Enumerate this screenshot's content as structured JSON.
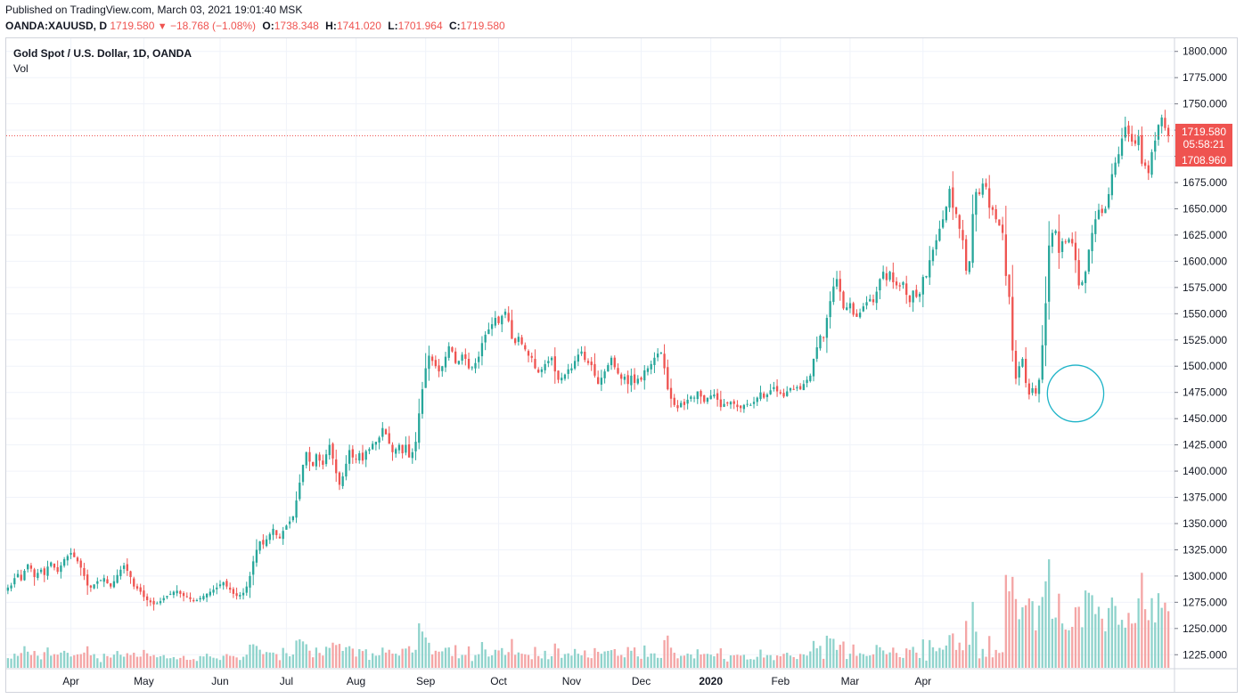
{
  "header": {
    "published": "Published on TradingView.com, March 03, 2021 19:01:40 MSK",
    "symbol": "OANDA:XAUUSD, D",
    "last": "1719.580",
    "change_arrow": "▼",
    "change": "−18.768 (−1.08%)",
    "open_label": "O:",
    "open": "1738.348",
    "high_label": "H:",
    "high": "1741.020",
    "low_label": "L:",
    "low": "1701.964",
    "close_label": "C:",
    "close": "1719.580"
  },
  "legend": {
    "title": "Gold Spot / U.S. Dollar, 1D, OANDA",
    "volume": "Vol"
  },
  "price_scale": {
    "last_price": "1719.580",
    "countdown": "05:58:21",
    "crosshair_price": "1708.960"
  },
  "colors": {
    "up": "#26a69a",
    "down": "#ef5350",
    "up_volume": "#8fd3cc",
    "down_volume": "#f4a5a5",
    "annotation": "#1fb4c8",
    "grid": "#f0f3fa"
  },
  "chart_data": {
    "type": "candlestick",
    "ylim": [
      1212.5,
      1812.5
    ],
    "y_ticks": [
      1800,
      1775,
      1750,
      1725,
      1700,
      1675,
      1650,
      1625,
      1600,
      1575,
      1550,
      1525,
      1500,
      1475,
      1450,
      1425,
      1400,
      1375,
      1350,
      1325,
      1300,
      1275,
      1250,
      1225
    ],
    "y_tick_labels": [
      "1800.000",
      "1775.000",
      "1750.000",
      "1725.000",
      "1700.000",
      "1675.000",
      "1650.000",
      "1625.000",
      "1600.000",
      "1575.000",
      "1550.000",
      "1525.000",
      "1500.000",
      "1475.000",
      "1450.000",
      "1425.000",
      "1400.000",
      "1375.000",
      "1350.000",
      "1325.000",
      "1300.000",
      "1275.000",
      "1250.000",
      "1225.000"
    ],
    "x_labels": [
      "Apr",
      "May",
      "Jun",
      "Jul",
      "Aug",
      "Sep",
      "Oct",
      "Nov",
      "Dec",
      "2020",
      "Feb",
      "Mar",
      "Apr"
    ],
    "x_label_index": [
      19,
      41,
      64,
      84,
      105,
      126,
      148,
      170,
      191,
      212,
      233,
      254,
      276
    ],
    "bold_labels": [
      "2020"
    ],
    "series": [
      {
        "name": "Gold Spot / U.S. Dollar",
        "type": "candlestick",
        "close_path": [
          1289,
          1291,
          1298,
          1302,
          1296,
          1305,
          1311,
          1307,
          1299,
          1303,
          1306,
          1301,
          1309,
          1313,
          1308,
          1304,
          1310,
          1316,
          1319,
          1322,
          1318,
          1314,
          1308,
          1300,
          1291,
          1289,
          1292,
          1295,
          1296,
          1298,
          1293,
          1290,
          1295,
          1301,
          1306,
          1310,
          1305,
          1299,
          1290,
          1288,
          1285,
          1280,
          1277,
          1275,
          1273,
          1274,
          1276,
          1279,
          1281,
          1283,
          1285,
          1286,
          1283,
          1281,
          1280,
          1278,
          1276,
          1277,
          1279,
          1281,
          1283,
          1285,
          1287,
          1289,
          1292,
          1294,
          1290,
          1287,
          1283,
          1281,
          1282,
          1284,
          1290,
          1300,
          1314,
          1325,
          1333,
          1330,
          1335,
          1340,
          1345,
          1339,
          1336,
          1343,
          1348,
          1352,
          1357,
          1372,
          1389,
          1406,
          1418,
          1409,
          1405,
          1416,
          1410,
          1406,
          1416,
          1425,
          1412,
          1398,
          1387,
          1395,
          1407,
          1420,
          1413,
          1411,
          1417,
          1410,
          1419,
          1421,
          1426,
          1428,
          1432,
          1441,
          1435,
          1426,
          1418,
          1421,
          1425,
          1417,
          1425,
          1413,
          1418,
          1428,
          1455,
          1478,
          1498,
          1510,
          1505,
          1500,
          1495,
          1500,
          1509,
          1519,
          1514,
          1503,
          1505,
          1511,
          1507,
          1498,
          1499,
          1503,
          1509,
          1522,
          1530,
          1535,
          1540,
          1546,
          1541,
          1548,
          1552,
          1543,
          1526,
          1522,
          1528,
          1521,
          1516,
          1510,
          1508,
          1498,
          1494,
          1497,
          1502,
          1505,
          1508,
          1495,
          1487,
          1489,
          1492,
          1497,
          1498,
          1505,
          1511,
          1514,
          1506,
          1503,
          1501,
          1491,
          1483,
          1489,
          1495,
          1501,
          1508,
          1499,
          1493,
          1488,
          1490,
          1483,
          1491,
          1484,
          1488,
          1487,
          1496,
          1498,
          1502,
          1508,
          1512,
          1513,
          1498,
          1478,
          1469,
          1463,
          1460,
          1465,
          1463,
          1468,
          1471,
          1470,
          1476,
          1471,
          1466,
          1470,
          1472,
          1473,
          1468,
          1461,
          1464,
          1465,
          1466,
          1464,
          1461,
          1460,
          1463,
          1464,
          1463,
          1466,
          1470,
          1475,
          1470,
          1473,
          1477,
          1480,
          1476,
          1474,
          1471,
          1476,
          1479,
          1478,
          1480,
          1478,
          1483,
          1487,
          1491,
          1507,
          1518,
          1529,
          1527,
          1546,
          1562,
          1576,
          1583,
          1571,
          1555,
          1556,
          1560,
          1549,
          1547,
          1551,
          1557,
          1561,
          1564,
          1561,
          1571,
          1583,
          1590,
          1582,
          1590,
          1580,
          1577,
          1576,
          1580,
          1568,
          1561,
          1572,
          1566,
          1569,
          1585,
          1586,
          1601,
          1611,
          1620,
          1631,
          1640,
          1652,
          1669,
          1651,
          1645,
          1631,
          1620,
          1591,
          1600,
          1645,
          1666,
          1664,
          1674,
          1671,
          1651,
          1649,
          1640,
          1634,
          1627,
          1586,
          1566,
          1515,
          1488,
          1500,
          1507,
          1484,
          1473,
          1479,
          1474,
          1487,
          1520,
          1560,
          1615,
          1627,
          1629,
          1608,
          1619,
          1618,
          1621,
          1617,
          1601,
          1577,
          1580,
          1590,
          1611,
          1627,
          1640,
          1649,
          1646,
          1650,
          1664,
          1683,
          1694,
          1702,
          1717,
          1728,
          1721,
          1714,
          1712,
          1719,
          1693,
          1691,
          1684,
          1704,
          1715,
          1730,
          1737,
          1727,
          1719.58
        ]
      }
    ],
    "last_price": 1719.58,
    "annotation": {
      "type": "ellipse",
      "center": [
        322,
        1474
      ],
      "radii": [
        8.5,
        27
      ]
    }
  }
}
